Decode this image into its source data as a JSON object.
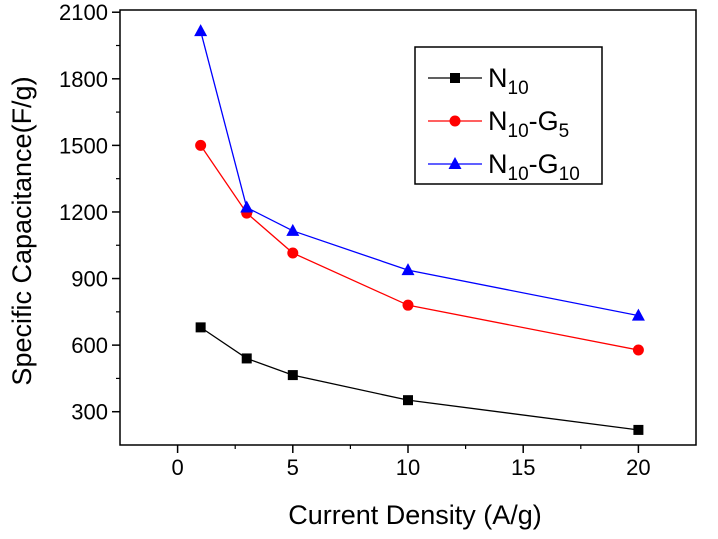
{
  "chart_data": {
    "type": "line",
    "title": "",
    "xlabel": "Current Density (A/g)",
    "ylabel": "Specific Capacitance(F/g)",
    "xlim": [
      -2.5,
      22.5
    ],
    "ylim": [
      150,
      2110
    ],
    "xticks": [
      0,
      5,
      10,
      15,
      20
    ],
    "yticks": [
      300,
      600,
      900,
      1200,
      1500,
      1800,
      2100
    ],
    "x": [
      1,
      3,
      5,
      10,
      20
    ],
    "grid": false,
    "legend_position": "top-right",
    "series": [
      {
        "name_main": "N",
        "name_sub": "10",
        "name_suffix": "",
        "name_suffix_sub": "",
        "marker": "square",
        "color": "#000000",
        "values": [
          680,
          540,
          465,
          352,
          218
        ]
      },
      {
        "name_main": "N",
        "name_sub": "10",
        "name_suffix": "-G",
        "name_suffix_sub": "5",
        "marker": "circle",
        "color": "#ff0000",
        "values": [
          1500,
          1195,
          1015,
          780,
          578
        ]
      },
      {
        "name_main": "N",
        "name_sub": "10",
        "name_suffix": "-G",
        "name_suffix_sub": "10",
        "marker": "triangle",
        "color": "#0000ff",
        "values": [
          2015,
          1220,
          1115,
          938,
          733
        ]
      }
    ]
  }
}
